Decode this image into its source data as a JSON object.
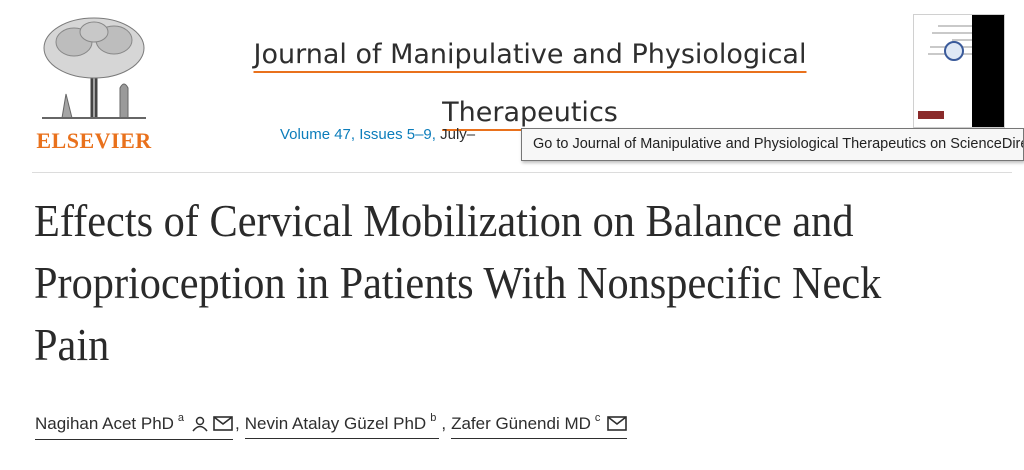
{
  "header": {
    "publisher": {
      "name": "ELSEVIER",
      "logo_icon": "elsevier-tree-logo"
    },
    "journal": {
      "title": "Journal of Manipulative and Physiological Therapeutics",
      "cover_icon": "journal-cover-thumbnail"
    },
    "issue": {
      "link_text": "Volume 47, Issues 5–9,",
      "trailing_text": "July–"
    },
    "tooltip": {
      "text": "Go to Journal of Manipulative and Physiological Therapeutics on ScienceDirect"
    }
  },
  "article": {
    "title": "Effects of Cervical Mobilization on Balance and Proprioception in Patients With Nonspecific Neck Pain",
    "authors": [
      {
        "name": "Nagihan Acet PhD",
        "affiliation": "a",
        "icons": [
          "person-icon",
          "envelope-icon"
        ]
      },
      {
        "name": "Nevin Atalay Güzel PhD",
        "affiliation": "b",
        "icons": []
      },
      {
        "name": "Zafer Günendi MD",
        "affiliation": "c",
        "icons": [
          "envelope-icon"
        ]
      }
    ],
    "author_separator": ","
  },
  "colors": {
    "publisher_orange": "#e9711c",
    "link_blue": "#0c7dbb",
    "text": "#2a2a2a"
  }
}
